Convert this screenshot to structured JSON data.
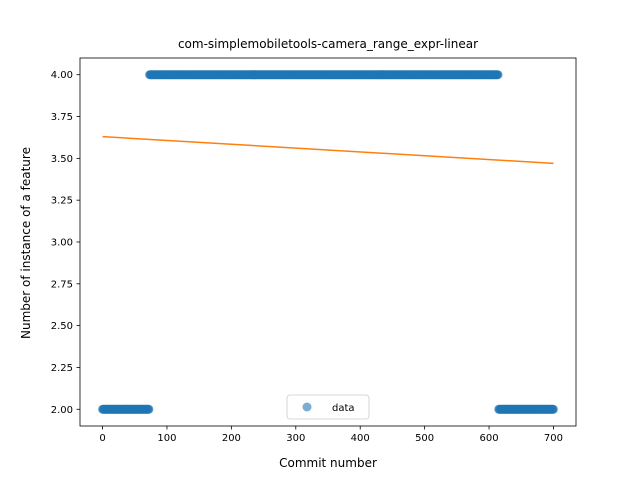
{
  "chart_data": {
    "type": "scatter",
    "title": "com-simplemobiletools-camera_range_expr-linear",
    "xlabel": "Commit number",
    "ylabel": "Number of instance of a feature",
    "xlim": [
      -35,
      735
    ],
    "ylim": [
      1.9,
      4.1
    ],
    "xticks": [
      0,
      100,
      200,
      300,
      400,
      500,
      600,
      700
    ],
    "yticks": [
      2.0,
      2.25,
      2.5,
      2.75,
      3.0,
      3.25,
      3.5,
      3.75,
      4.0
    ],
    "ytick_labels": [
      "2.00",
      "2.25",
      "2.50",
      "2.75",
      "3.00",
      "3.25",
      "3.50",
      "3.75",
      "4.00"
    ],
    "series": [
      {
        "name": "data",
        "kind": "scatter",
        "color": "#1f77b4",
        "alpha": 0.6,
        "segments": [
          {
            "x_start": 0,
            "x_end": 72,
            "y": 2.0
          },
          {
            "x_start": 73,
            "x_end": 614,
            "y": 4.0
          },
          {
            "x_start": 615,
            "x_end": 700,
            "y": 2.0
          }
        ]
      },
      {
        "name": "",
        "kind": "line",
        "color": "#ff7f0e",
        "x": [
          0,
          700
        ],
        "y": [
          3.63,
          3.47
        ]
      }
    ],
    "legend": {
      "position": "lower center",
      "entries": [
        "data"
      ]
    },
    "grid": false
  }
}
